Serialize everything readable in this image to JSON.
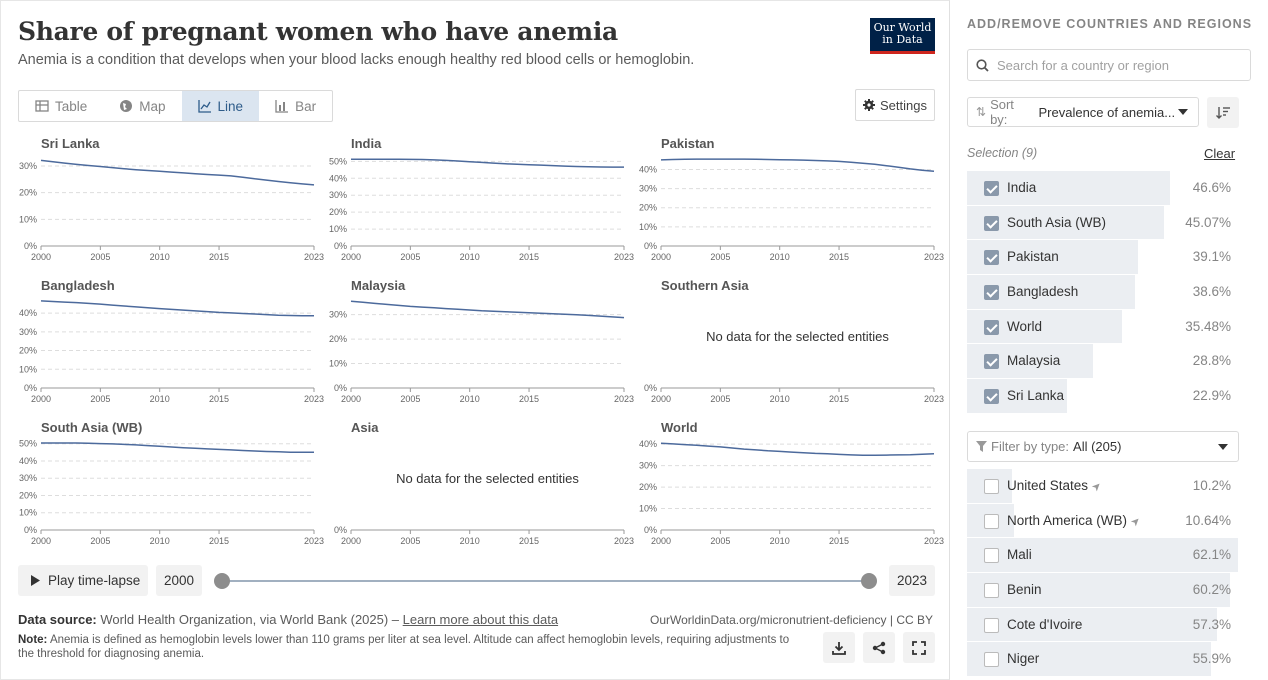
{
  "header": {
    "title": "Share of pregnant women who have anemia",
    "subtitle": "Anemia is a condition that develops when your blood lacks enough healthy red blood cells or hemoglobin.",
    "logo": "Our World in Data"
  },
  "tabs": [
    {
      "label": "Table",
      "icon": "table-icon",
      "active": false
    },
    {
      "label": "Map",
      "icon": "globe-icon",
      "active": false
    },
    {
      "label": "Line",
      "icon": "line-chart-icon",
      "active": true
    },
    {
      "label": "Bar",
      "icon": "bar-chart-icon",
      "active": false
    }
  ],
  "settings_label": "Settings",
  "no_data_text": "No data for the selected entities",
  "chart_data": {
    "type": "line",
    "x_ticks": [
      "2000",
      "2005",
      "2010",
      "2015",
      "2023"
    ],
    "x": [
      2000,
      2001,
      2002,
      2003,
      2004,
      2005,
      2006,
      2007,
      2008,
      2009,
      2010,
      2011,
      2012,
      2013,
      2014,
      2015,
      2016,
      2017,
      2018,
      2019,
      2020,
      2021,
      2022,
      2023
    ],
    "grid": true,
    "panels": [
      {
        "name": "Sri Lanka",
        "yticks": [
          "0%",
          "10%",
          "20%",
          "30%"
        ],
        "ymax": 33,
        "values": [
          32.1,
          31.6,
          31.1,
          30.6,
          30.2,
          29.8,
          29.4,
          29.0,
          28.6,
          28.3,
          28.0,
          27.7,
          27.4,
          27.1,
          26.8,
          26.6,
          26.3,
          25.8,
          25.2,
          24.7,
          24.2,
          23.7,
          23.3,
          22.9
        ]
      },
      {
        "name": "India",
        "yticks": [
          "0%",
          "10%",
          "20%",
          "30%",
          "40%",
          "50%"
        ],
        "ymax": 52,
        "values": [
          51.3,
          51.3,
          51.3,
          51.3,
          51.3,
          51.2,
          51.1,
          50.9,
          50.6,
          50.2,
          49.8,
          49.4,
          49.0,
          48.6,
          48.3,
          48.0,
          47.8,
          47.5,
          47.2,
          47.0,
          46.8,
          46.7,
          46.6,
          46.6
        ]
      },
      {
        "name": "Pakistan",
        "yticks": [
          "0%",
          "10%",
          "20%",
          "30%",
          "40%"
        ],
        "ymax": 46,
        "values": [
          45.0,
          45.2,
          45.3,
          45.4,
          45.4,
          45.4,
          45.4,
          45.4,
          45.3,
          45.2,
          45.1,
          45.0,
          44.9,
          44.7,
          44.5,
          44.2,
          43.8,
          43.3,
          42.7,
          42.0,
          41.2,
          40.3,
          39.6,
          39.1
        ]
      },
      {
        "name": "Bangladesh",
        "yticks": [
          "0%",
          "10%",
          "20%",
          "30%",
          "40%"
        ],
        "ymax": 47,
        "values": [
          46.5,
          46.2,
          45.9,
          45.6,
          45.2,
          44.8,
          44.3,
          43.8,
          43.3,
          42.9,
          42.4,
          42.0,
          41.6,
          41.2,
          40.8,
          40.4,
          40.1,
          39.8,
          39.5,
          39.2,
          38.9,
          38.7,
          38.6,
          38.6
        ]
      },
      {
        "name": "Malaysia",
        "yticks": [
          "0%",
          "10%",
          "20%",
          "30%"
        ],
        "ymax": 36,
        "values": [
          35.5,
          35.1,
          34.6,
          34.2,
          33.8,
          33.4,
          33.1,
          32.8,
          32.5,
          32.2,
          31.9,
          31.6,
          31.4,
          31.2,
          31.0,
          30.8,
          30.6,
          30.4,
          30.2,
          30.0,
          29.7,
          29.4,
          29.1,
          28.8
        ]
      },
      {
        "name": "Southern Asia",
        "yticks": [
          "0%"
        ],
        "ymax": 50,
        "values": []
      },
      {
        "name": "South Asia (WB)",
        "yticks": [
          "0%",
          "10%",
          "20%",
          "30%",
          "40%",
          "50%"
        ],
        "ymax": 51,
        "values": [
          50.4,
          50.4,
          50.4,
          50.4,
          50.3,
          50.1,
          49.9,
          49.6,
          49.3,
          48.9,
          48.5,
          48.1,
          47.7,
          47.4,
          47.0,
          46.7,
          46.4,
          46.1,
          45.8,
          45.5,
          45.3,
          45.1,
          45.07,
          45.07
        ]
      },
      {
        "name": "Asia",
        "yticks": [
          "0%"
        ],
        "ymax": 50,
        "values": []
      },
      {
        "name": "World",
        "yticks": [
          "0%",
          "10%",
          "20%",
          "30%",
          "40%"
        ],
        "ymax": 41,
        "values": [
          40.4,
          40.1,
          39.8,
          39.5,
          39.1,
          38.7,
          38.2,
          37.7,
          37.3,
          36.9,
          36.6,
          36.3,
          36.0,
          35.7,
          35.5,
          35.2,
          35.0,
          34.8,
          34.8,
          34.9,
          35.0,
          35.1,
          35.3,
          35.48
        ]
      }
    ]
  },
  "timeline": {
    "play_label": "Play time-lapse",
    "start_year": "2000",
    "end_year": "2023"
  },
  "footer": {
    "source_label": "Data source:",
    "source_text": "World Health Organization, via World Bank (2025) –",
    "learn_more": "Learn more about this data",
    "url": "OurWorldinData.org/micronutrient-deficiency | CC BY",
    "note_label": "Note:",
    "note_text": "Anemia is defined as hemoglobin levels lower than 110 grams per liter at sea level. Altitude can affect hemoglobin levels, requiring adjustments to the threshold for diagnosing anemia."
  },
  "sidebar": {
    "heading": "ADD/REMOVE COUNTRIES AND REGIONS",
    "search_placeholder": "Search for a country or region",
    "sort_label": "Sort by:",
    "sort_value": "Prevalence of anemia...",
    "selection_label": "Selection (9)",
    "clear_label": "Clear",
    "filter_label": "Filter by type:",
    "filter_value": "All (205)",
    "selected": [
      {
        "name": "India",
        "value": "46.6%",
        "fraction": 0.748
      },
      {
        "name": "South Asia (WB)",
        "value": "45.07%",
        "fraction": 0.723
      },
      {
        "name": "Pakistan",
        "value": "39.1%",
        "fraction": 0.627
      },
      {
        "name": "Bangladesh",
        "value": "38.6%",
        "fraction": 0.619
      },
      {
        "name": "World",
        "value": "35.48%",
        "fraction": 0.569
      },
      {
        "name": "Malaysia",
        "value": "28.8%",
        "fraction": 0.462
      },
      {
        "name": "Sri Lanka",
        "value": "22.9%",
        "fraction": 0.367
      }
    ],
    "others": [
      {
        "name": "United States",
        "value": "10.2%",
        "fraction": 0.164,
        "arrow": true
      },
      {
        "name": "North America (WB)",
        "value": "10.64%",
        "fraction": 0.171,
        "arrow": true
      },
      {
        "name": "Mali",
        "value": "62.1%",
        "fraction": 0.996
      },
      {
        "name": "Benin",
        "value": "60.2%",
        "fraction": 0.966
      },
      {
        "name": "Cote d'Ivoire",
        "value": "57.3%",
        "fraction": 0.919
      },
      {
        "name": "Niger",
        "value": "55.9%",
        "fraction": 0.897
      }
    ]
  }
}
